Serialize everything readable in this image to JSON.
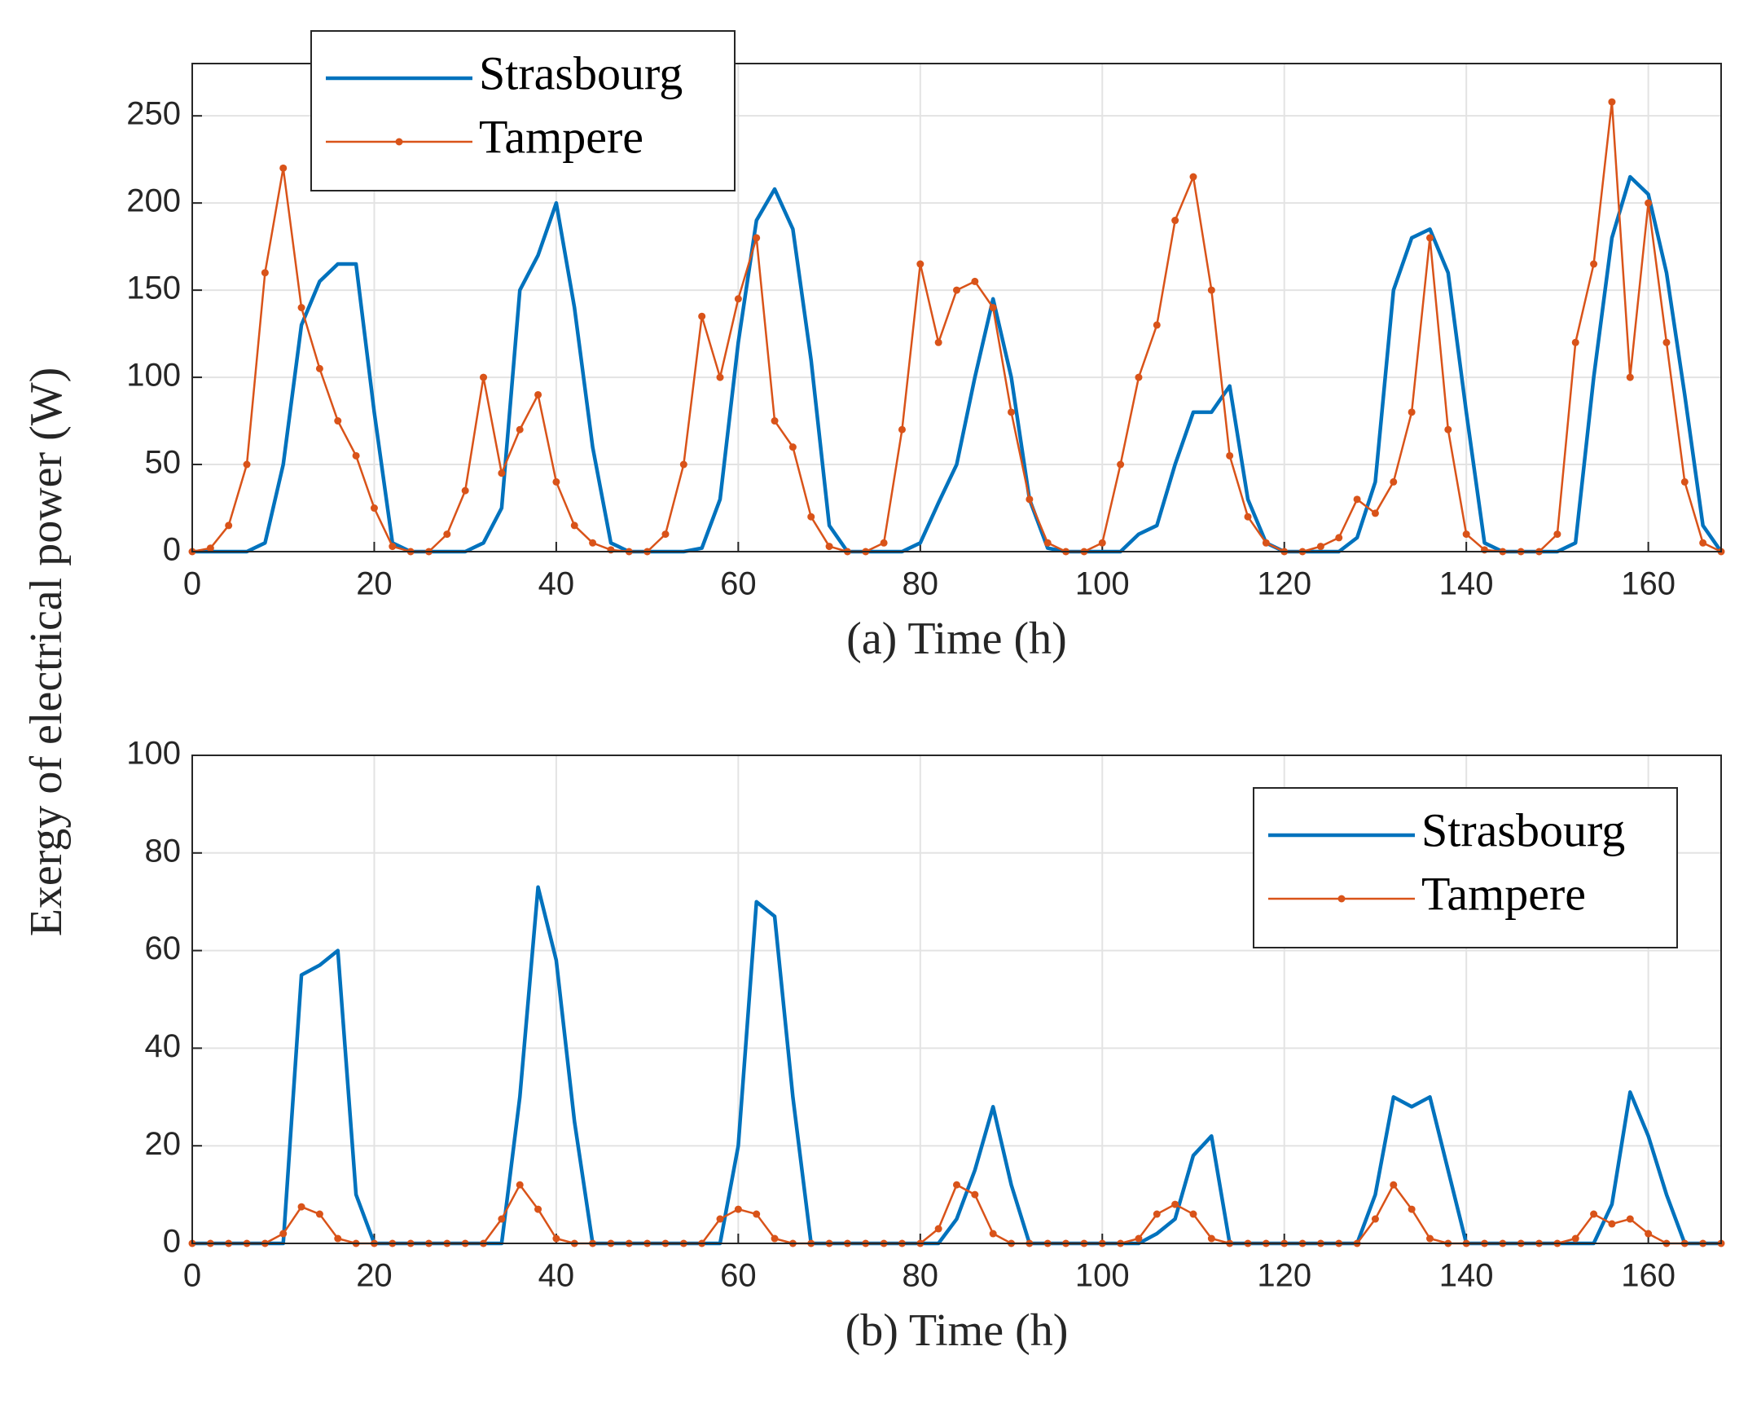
{
  "ylabel": "Exergy of electrical power (W)",
  "chart_data": [
    {
      "type": "line",
      "xlabel": "(a)  Time (h)",
      "legend": "upper left",
      "grid": true,
      "xlim": [
        0,
        168
      ],
      "ylim": [
        0,
        280
      ],
      "xticks": [
        0,
        20,
        40,
        60,
        80,
        100,
        120,
        140,
        160
      ],
      "yticks": [
        0,
        50,
        100,
        150,
        200,
        250
      ],
      "x": [
        0,
        2,
        4,
        6,
        8,
        10,
        12,
        14,
        16,
        18,
        20,
        22,
        24,
        26,
        28,
        30,
        32,
        34,
        36,
        38,
        40,
        42,
        44,
        46,
        48,
        50,
        52,
        54,
        56,
        58,
        60,
        62,
        64,
        66,
        68,
        70,
        72,
        74,
        76,
        78,
        80,
        82,
        84,
        86,
        88,
        90,
        92,
        94,
        96,
        98,
        100,
        102,
        104,
        106,
        108,
        110,
        112,
        114,
        116,
        118,
        120,
        122,
        124,
        126,
        128,
        130,
        132,
        134,
        136,
        138,
        140,
        142,
        144,
        146,
        148,
        150,
        152,
        154,
        156,
        158,
        160,
        162,
        164,
        166,
        168
      ],
      "series": [
        {
          "name": "Strasbourg",
          "color": "#0072bd",
          "markers": false,
          "values": [
            0,
            0,
            0,
            0,
            5,
            50,
            130,
            155,
            165,
            165,
            80,
            5,
            0,
            0,
            0,
            0,
            5,
            25,
            150,
            170,
            200,
            140,
            60,
            5,
            0,
            0,
            0,
            0,
            2,
            30,
            120,
            190,
            208,
            185,
            110,
            15,
            0,
            0,
            0,
            0,
            5,
            28,
            50,
            100,
            145,
            100,
            30,
            2,
            0,
            0,
            0,
            0,
            10,
            15,
            50,
            80,
            80,
            95,
            30,
            5,
            0,
            0,
            0,
            0,
            8,
            40,
            150,
            180,
            185,
            160,
            80,
            5,
            0,
            0,
            0,
            0,
            5,
            100,
            180,
            215,
            205,
            160,
            90,
            15,
            0
          ]
        },
        {
          "name": "Tampere",
          "color": "#d95319",
          "markers": true,
          "values": [
            0,
            2,
            15,
            50,
            160,
            220,
            140,
            105,
            75,
            55,
            25,
            3,
            0,
            0,
            10,
            35,
            100,
            45,
            70,
            90,
            40,
            15,
            5,
            1,
            0,
            0,
            10,
            50,
            135,
            100,
            145,
            180,
            75,
            60,
            20,
            3,
            0,
            0,
            5,
            70,
            165,
            120,
            150,
            155,
            140,
            80,
            30,
            5,
            0,
            0,
            5,
            50,
            100,
            130,
            190,
            215,
            150,
            55,
            20,
            5,
            0,
            0,
            3,
            8,
            30,
            22,
            40,
            80,
            180,
            70,
            10,
            1,
            0,
            0,
            0,
            10,
            120,
            165,
            258,
            100,
            200,
            120,
            40,
            5,
            0
          ]
        }
      ]
    },
    {
      "type": "line",
      "xlabel": "(b)  Time (h)",
      "legend": "upper right",
      "grid": true,
      "xlim": [
        0,
        168
      ],
      "ylim": [
        0,
        100
      ],
      "xticks": [
        0,
        20,
        40,
        60,
        80,
        100,
        120,
        140,
        160
      ],
      "yticks": [
        0,
        20,
        40,
        60,
        80,
        100
      ],
      "x": [
        0,
        2,
        4,
        6,
        8,
        10,
        12,
        14,
        16,
        18,
        20,
        22,
        24,
        26,
        28,
        30,
        32,
        34,
        36,
        38,
        40,
        42,
        44,
        46,
        48,
        50,
        52,
        54,
        56,
        58,
        60,
        62,
        64,
        66,
        68,
        70,
        72,
        74,
        76,
        78,
        80,
        82,
        84,
        86,
        88,
        90,
        92,
        94,
        96,
        98,
        100,
        102,
        104,
        106,
        108,
        110,
        112,
        114,
        116,
        118,
        120,
        122,
        124,
        126,
        128,
        130,
        132,
        134,
        136,
        138,
        140,
        142,
        144,
        146,
        148,
        150,
        152,
        154,
        156,
        158,
        160,
        162,
        164,
        166,
        168
      ],
      "series": [
        {
          "name": "Strasbourg",
          "color": "#0072bd",
          "markers": false,
          "values": [
            0,
            0,
            0,
            0,
            0,
            0,
            55,
            57,
            60,
            10,
            0,
            0,
            0,
            0,
            0,
            0,
            0,
            0,
            30,
            73,
            58,
            25,
            0,
            0,
            0,
            0,
            0,
            0,
            0,
            0,
            20,
            70,
            67,
            30,
            0,
            0,
            0,
            0,
            0,
            0,
            0,
            0,
            5,
            15,
            28,
            12,
            0,
            0,
            0,
            0,
            0,
            0,
            0,
            2,
            5,
            18,
            22,
            0,
            0,
            0,
            0,
            0,
            0,
            0,
            0,
            10,
            30,
            28,
            30,
            15,
            0,
            0,
            0,
            0,
            0,
            0,
            0,
            0,
            8,
            31,
            22,
            10,
            0,
            0,
            0
          ]
        },
        {
          "name": "Tampere",
          "color": "#d95319",
          "markers": true,
          "values": [
            0,
            0,
            0,
            0,
            0,
            2,
            7.5,
            6,
            1,
            0,
            0,
            0,
            0,
            0,
            0,
            0,
            0,
            5,
            12,
            7,
            1,
            0,
            0,
            0,
            0,
            0,
            0,
            0,
            0,
            5,
            7,
            6,
            1,
            0,
            0,
            0,
            0,
            0,
            0,
            0,
            0,
            3,
            12,
            10,
            2,
            0,
            0,
            0,
            0,
            0,
            0,
            0,
            1,
            6,
            8,
            6,
            1,
            0,
            0,
            0,
            0,
            0,
            0,
            0,
            0,
            5,
            12,
            7,
            1,
            0,
            0,
            0,
            0,
            0,
            0,
            0,
            1,
            6,
            4,
            5,
            2,
            0,
            0,
            0,
            0
          ]
        }
      ]
    }
  ]
}
